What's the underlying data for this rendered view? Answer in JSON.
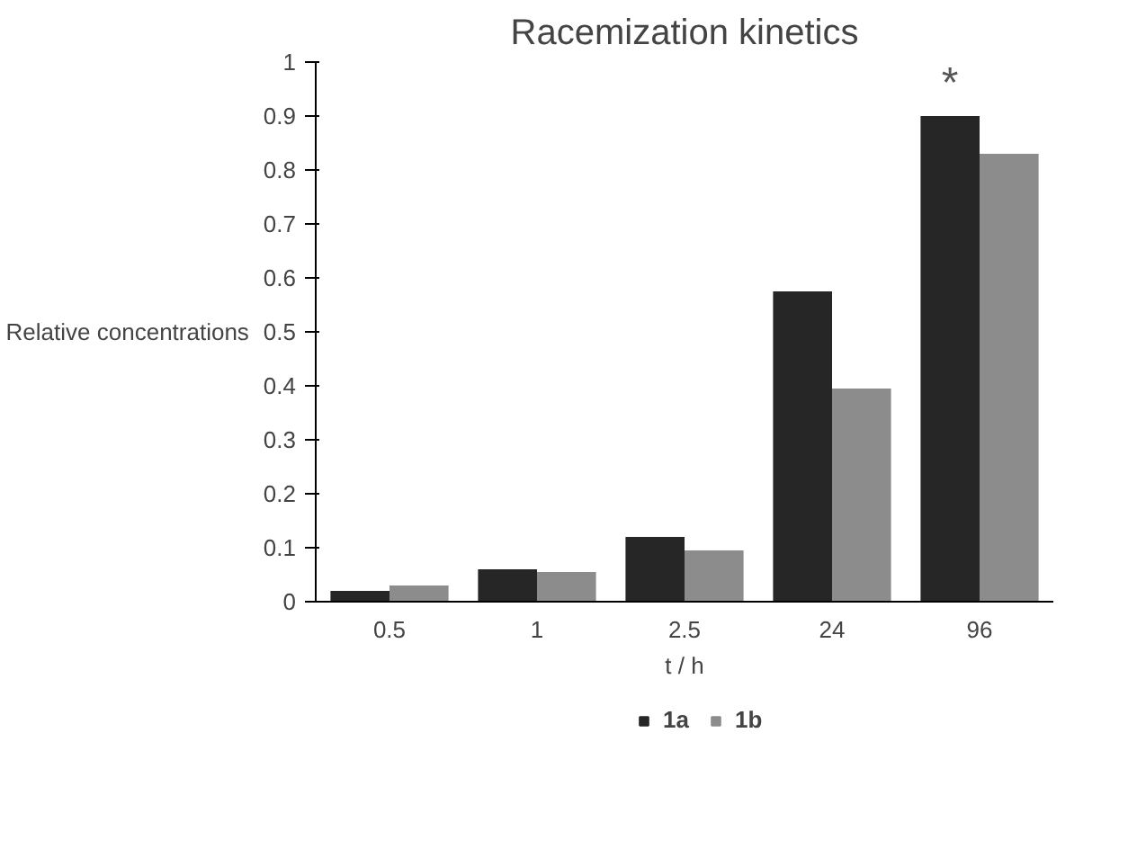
{
  "chart_data": {
    "type": "bar",
    "title": "Racemization kinetics",
    "xlabel": "t / h",
    "ylabel": "Relative concentrations",
    "categories": [
      "0.5",
      "1",
      "2.5",
      "24",
      "96"
    ],
    "series": [
      {
        "name": "1a",
        "color": "#262626",
        "values": [
          0.02,
          0.06,
          0.12,
          0.575,
          0.9
        ]
      },
      {
        "name": "1b",
        "color": "#8c8c8c",
        "values": [
          0.03,
          0.055,
          0.095,
          0.395,
          0.83
        ]
      }
    ],
    "ylim": [
      0,
      1
    ],
    "yticks": [
      0,
      0.1,
      0.2,
      0.3,
      0.4,
      0.5,
      0.6,
      0.7,
      0.8,
      0.9,
      1
    ],
    "annotations": [
      "*"
    ],
    "grid": false,
    "legend": "bottom"
  }
}
